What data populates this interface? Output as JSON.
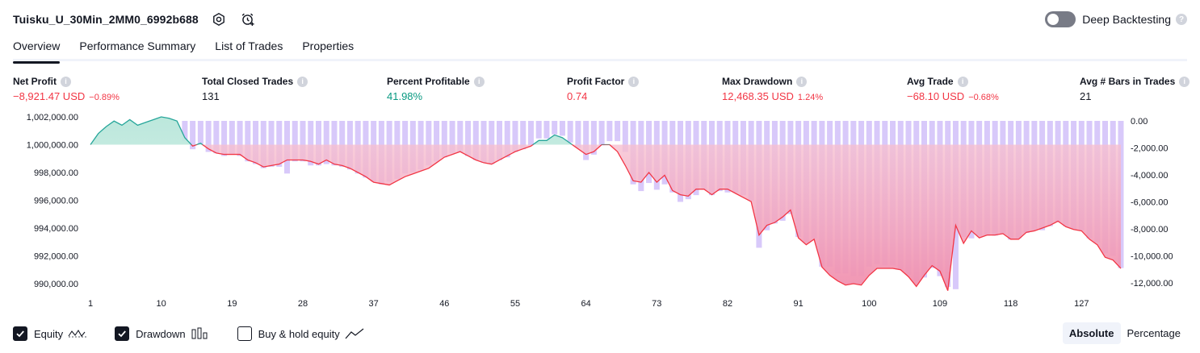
{
  "header": {
    "title": "Tuisku_U_30Min_2MM0_6992b688",
    "settings_icon": "settings-gear-icon",
    "alert_icon": "alarm-clock-plus-icon",
    "deep_backtesting_label": "Deep Backtesting",
    "deep_backtesting_enabled": false,
    "help": "?"
  },
  "tabs": [
    {
      "label": "Overview",
      "active": true
    },
    {
      "label": "Performance Summary",
      "active": false
    },
    {
      "label": "List of Trades",
      "active": false
    },
    {
      "label": "Properties",
      "active": false
    }
  ],
  "metrics": [
    {
      "label": "Net Profit",
      "value": "−8,921.47 USD",
      "pct": "−0.89%",
      "tone": "neg"
    },
    {
      "label": "Total Closed Trades",
      "value": "131",
      "pct": "",
      "tone": "neutral"
    },
    {
      "label": "Percent Profitable",
      "value": "41.98%",
      "pct": "",
      "tone": "pos"
    },
    {
      "label": "Profit Factor",
      "value": "0.74",
      "pct": "",
      "tone": "neg"
    },
    {
      "label": "Max Drawdown",
      "value": "12,468.35 USD",
      "pct": "1.24%",
      "tone": "neg"
    },
    {
      "label": "Avg Trade",
      "value": "−68.10 USD",
      "pct": "−0.68%",
      "tone": "neg"
    },
    {
      "label": "Avg # Bars in Trades",
      "value": "21",
      "pct": "",
      "tone": "neutral"
    }
  ],
  "colors": {
    "equity_above": "#26a69a",
    "equity_below": "#f23645",
    "fill_above": "#d6f0ea",
    "fill_below": "#f5a3b7",
    "drawdown_bar": "#d1bff9"
  },
  "chart_data": {
    "type": "line",
    "x_ticks": [
      1,
      10,
      19,
      28,
      37,
      46,
      55,
      64,
      73,
      82,
      91,
      100,
      109,
      118,
      127
    ],
    "xlim": [
      1,
      131
    ],
    "y_left_ticks": [
      "1,002,000.00",
      "1,000,000.00",
      "998,000.00",
      "996,000.00",
      "994,000.00",
      "992,000.00",
      "990,000.00"
    ],
    "y_left_values": [
      1002000,
      1000000,
      998000,
      996000,
      994000,
      992000,
      990000
    ],
    "y_right_ticks": [
      "0.00",
      "-2,000.00",
      "-4,000.00",
      "-6,000.00",
      "-8,000.00",
      "-10,000.00",
      "-12,000.00"
    ],
    "y_right_values": [
      0,
      -2000,
      -4000,
      -6000,
      -8000,
      -10000,
      -12000
    ],
    "initial_capital": 1000000,
    "series": [
      {
        "name": "Equity",
        "values": [
          1000000,
          1000800,
          1001300,
          1001700,
          1001400,
          1001800,
          1001400,
          1001600,
          1001800,
          1002000,
          1001900,
          1001700,
          1000500,
          999900,
          1000100,
          999700,
          999400,
          999300,
          999300,
          999300,
          998900,
          998700,
          998400,
          998500,
          998600,
          998900,
          998900,
          998900,
          998800,
          998600,
          998900,
          998600,
          998500,
          998300,
          998000,
          997700,
          997300,
          997200,
          997100,
          997400,
          997700,
          997900,
          998100,
          998300,
          998700,
          999100,
          999300,
          999500,
          999200,
          998900,
          998700,
          998600,
          998900,
          999200,
          999500,
          999700,
          999900,
          1000300,
          1000300,
          1000700,
          1000500,
          1000100,
          999700,
          999300,
          999500,
          1000000,
          1000000,
          999500,
          998500,
          997400,
          997300,
          998000,
          997300,
          997800,
          996700,
          996400,
          996300,
          996800,
          996800,
          996400,
          996800,
          996800,
          996500,
          996200,
          995900,
          993500,
          994200,
          994400,
          994800,
          995300,
          993300,
          992800,
          993200,
          991200,
          990600,
          990200,
          989900,
          990000,
          989900,
          990600,
          991100,
          991100,
          991100,
          991000,
          990500,
          989800,
          990600,
          991300,
          990900,
          989500,
          994200,
          992900,
          993800,
          993300,
          993500,
          993500,
          993600,
          993200,
          993200,
          993700,
          993800,
          994000,
          994200,
          994500,
          994100,
          993900,
          993800,
          993200,
          992800,
          991900,
          991700,
          991100
        ]
      },
      {
        "name": "Drawdown",
        "values": [
          0,
          0,
          0,
          0,
          0,
          0,
          0,
          0,
          0,
          0,
          0,
          0,
          -1500,
          -2100,
          -1700,
          -2300,
          -2400,
          -2600,
          -2500,
          -2600,
          -3000,
          -3200,
          -3500,
          -3400,
          -3400,
          -3900,
          -3000,
          -3000,
          -3300,
          -3300,
          -3200,
          -3300,
          -3400,
          -3600,
          -3900,
          -4200,
          -4500,
          -4700,
          -4500,
          -4300,
          -3900,
          -3800,
          -3600,
          -3300,
          -3000,
          -2700,
          -2400,
          -2300,
          -2600,
          -2900,
          -3100,
          -3200,
          -2900,
          -2700,
          -2300,
          -2100,
          -1800,
          -1300,
          -1300,
          -1000,
          -1100,
          -1600,
          -2000,
          -2900,
          -2500,
          -1800,
          -1500,
          -1500,
          -2300,
          -4700,
          -5200,
          -4600,
          -5100,
          -4700,
          -5300,
          -6000,
          -5800,
          -5500,
          -5100,
          -5500,
          -5200,
          -5300,
          -5300,
          -5500,
          -5900,
          -9400,
          -8100,
          -7600,
          -7400,
          -6900,
          -8600,
          -9000,
          -8700,
          -10800,
          -10800,
          -11300,
          -11300,
          -11500,
          -11500,
          -10800,
          -10600,
          -10700,
          -10700,
          -11000,
          -11400,
          -11900,
          -11600,
          -10900,
          -11500,
          -12300,
          -12468,
          -8600,
          -8700,
          -8500,
          -8500,
          -8500,
          -8400,
          -8800,
          -8700,
          -8300,
          -8100,
          -8100,
          -7800,
          -7500,
          -7800,
          -8000,
          -8100,
          -8700,
          -9000,
          -9800,
          -10000,
          -10900
        ]
      }
    ]
  },
  "legend": [
    {
      "label": "Equity",
      "checked": true,
      "icon": "equity-line-icon"
    },
    {
      "label": "Drawdown",
      "checked": true,
      "icon": "drawdown-bars-icon"
    },
    {
      "label": "Buy & hold equity",
      "checked": false,
      "icon": "buy-hold-line-icon"
    }
  ],
  "view_mode": {
    "options": [
      "Absolute",
      "Percentage"
    ],
    "selected": "Absolute"
  }
}
